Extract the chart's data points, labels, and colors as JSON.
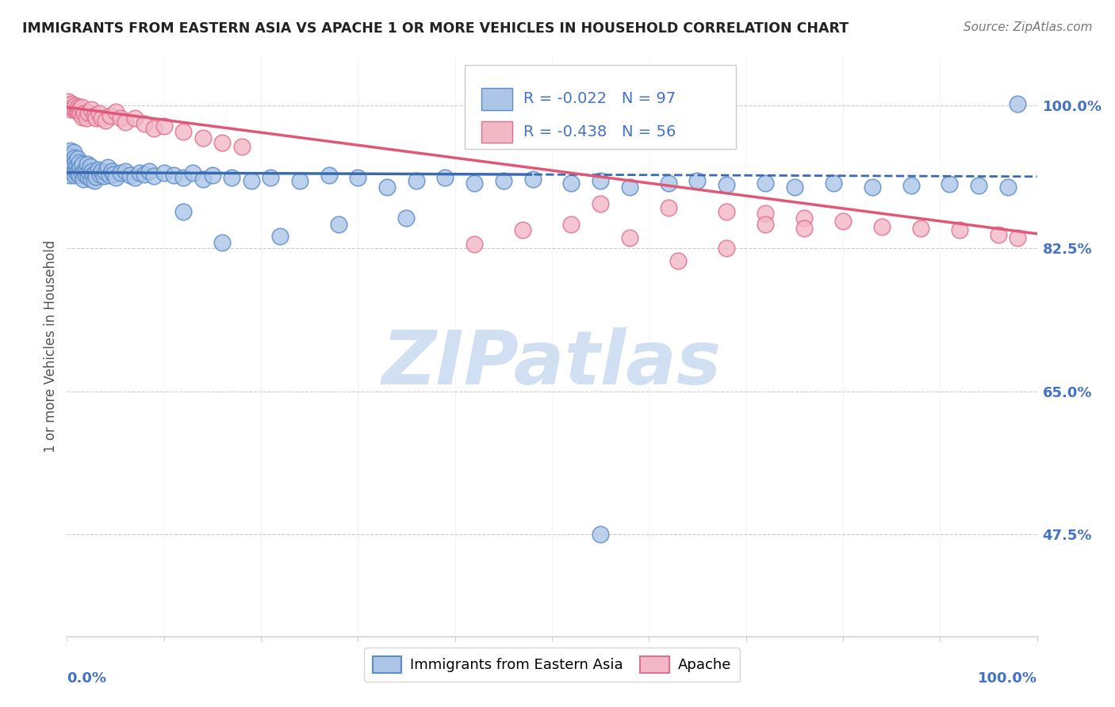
{
  "title": "IMMIGRANTS FROM EASTERN ASIA VS APACHE 1 OR MORE VEHICLES IN HOUSEHOLD CORRELATION CHART",
  "source": "Source: ZipAtlas.com",
  "ylabel": "1 or more Vehicles in Household",
  "legend_label1": "Immigrants from Eastern Asia",
  "legend_label2": "Apache",
  "R1": -0.022,
  "N1": 97,
  "R2": -0.438,
  "N2": 56,
  "blue_face": "#adc6e8",
  "blue_edge": "#5b8dc8",
  "pink_face": "#f2b8c6",
  "pink_edge": "#e07090",
  "line_blue": "#3a6ab0",
  "line_pink": "#e05878",
  "watermark_text": "ZIPatlas",
  "watermark_color": "#d0dff2",
  "axis_label_color": "#4472c4",
  "title_color": "#222222",
  "grid_color": "#cccccc",
  "xlim": [
    0.0,
    1.0
  ],
  "ylim": [
    0.35,
    1.06
  ],
  "yticks": [
    0.475,
    0.65,
    0.825,
    1.0
  ],
  "ytick_labels": [
    "47.5%",
    "65.0%",
    "82.5%",
    "100.0%"
  ],
  "blue_line_solid_end": 0.48,
  "blue_x": [
    0.001,
    0.002,
    0.002,
    0.003,
    0.003,
    0.004,
    0.004,
    0.005,
    0.005,
    0.006,
    0.006,
    0.007,
    0.007,
    0.008,
    0.008,
    0.009,
    0.009,
    0.01,
    0.01,
    0.011,
    0.012,
    0.013,
    0.013,
    0.014,
    0.015,
    0.016,
    0.017,
    0.018,
    0.019,
    0.02,
    0.021,
    0.022,
    0.023,
    0.024,
    0.025,
    0.026,
    0.027,
    0.028,
    0.029,
    0.03,
    0.032,
    0.034,
    0.036,
    0.038,
    0.04,
    0.042,
    0.044,
    0.046,
    0.048,
    0.05,
    0.055,
    0.06,
    0.065,
    0.07,
    0.075,
    0.08,
    0.085,
    0.09,
    0.1,
    0.11,
    0.12,
    0.13,
    0.14,
    0.15,
    0.17,
    0.19,
    0.21,
    0.24,
    0.27,
    0.3,
    0.33,
    0.36,
    0.39,
    0.42,
    0.45,
    0.48,
    0.52,
    0.55,
    0.58,
    0.62,
    0.65,
    0.68,
    0.72,
    0.75,
    0.79,
    0.83,
    0.87,
    0.91,
    0.94,
    0.97,
    0.35,
    0.28,
    0.22,
    0.16,
    0.12,
    0.55,
    0.98
  ],
  "blue_y": [
    0.925,
    0.935,
    0.92,
    0.94,
    0.915,
    0.93,
    0.945,
    0.938,
    0.922,
    0.932,
    0.918,
    0.928,
    0.943,
    0.915,
    0.936,
    0.921,
    0.931,
    0.926,
    0.918,
    0.935,
    0.92,
    0.915,
    0.93,
    0.924,
    0.918,
    0.928,
    0.91,
    0.92,
    0.915,
    0.922,
    0.928,
    0.913,
    0.919,
    0.925,
    0.91,
    0.92,
    0.915,
    0.908,
    0.918,
    0.913,
    0.922,
    0.916,
    0.92,
    0.914,
    0.919,
    0.924,
    0.915,
    0.92,
    0.916,
    0.912,
    0.918,
    0.92,
    0.915,
    0.912,
    0.918,
    0.916,
    0.92,
    0.914,
    0.918,
    0.915,
    0.912,
    0.918,
    0.91,
    0.915,
    0.912,
    0.908,
    0.912,
    0.908,
    0.915,
    0.912,
    0.9,
    0.908,
    0.912,
    0.905,
    0.908,
    0.91,
    0.905,
    0.908,
    0.9,
    0.905,
    0.908,
    0.903,
    0.905,
    0.9,
    0.905,
    0.9,
    0.902,
    0.904,
    0.902,
    0.9,
    0.862,
    0.855,
    0.84,
    0.832,
    0.87,
    0.475,
    1.002
  ],
  "pink_x": [
    0.001,
    0.002,
    0.003,
    0.004,
    0.005,
    0.006,
    0.007,
    0.008,
    0.009,
    0.01,
    0.011,
    0.012,
    0.013,
    0.014,
    0.015,
    0.016,
    0.018,
    0.02,
    0.022,
    0.025,
    0.028,
    0.03,
    0.033,
    0.036,
    0.04,
    0.045,
    0.05,
    0.055,
    0.06,
    0.07,
    0.08,
    0.09,
    0.1,
    0.12,
    0.14,
    0.16,
    0.18,
    0.55,
    0.62,
    0.68,
    0.72,
    0.76,
    0.8,
    0.84,
    0.88,
    0.92,
    0.96,
    0.98,
    0.72,
    0.76,
    0.68,
    0.63,
    0.58,
    0.52,
    0.47,
    0.42
  ],
  "pink_y": [
    1.005,
    1.0,
    0.998,
    0.995,
    1.002,
    0.997,
    0.998,
    0.995,
    1.0,
    0.993,
    0.998,
    0.992,
    0.996,
    0.99,
    0.998,
    0.986,
    0.99,
    0.985,
    0.991,
    0.995,
    0.988,
    0.985,
    0.99,
    0.985,
    0.982,
    0.988,
    0.992,
    0.985,
    0.98,
    0.985,
    0.978,
    0.972,
    0.975,
    0.968,
    0.96,
    0.955,
    0.95,
    0.88,
    0.875,
    0.87,
    0.868,
    0.862,
    0.858,
    0.852,
    0.85,
    0.848,
    0.842,
    0.838,
    0.855,
    0.85,
    0.825,
    0.81,
    0.838,
    0.855,
    0.848,
    0.83
  ]
}
